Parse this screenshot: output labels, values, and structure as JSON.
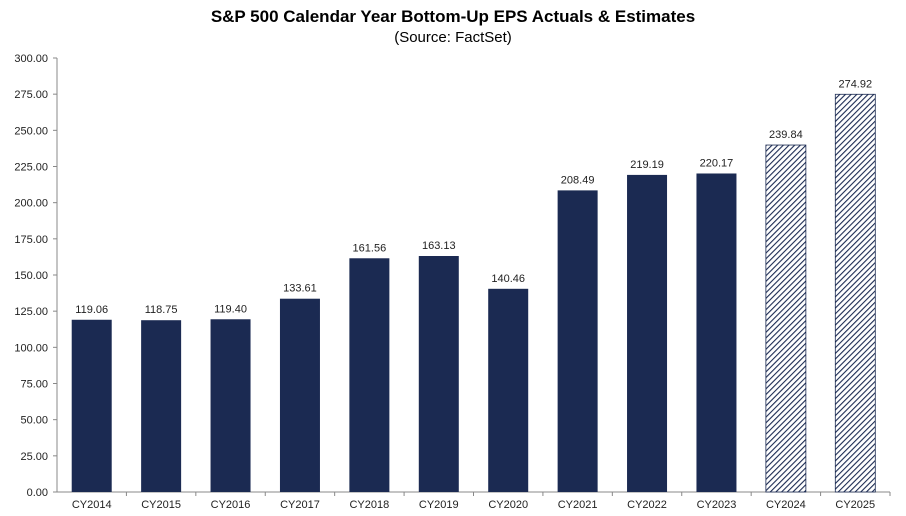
{
  "chart_data": {
    "type": "bar",
    "title": "S&P 500 Calendar Year Bottom-Up EPS Actuals & Estimates",
    "subtitle": "(Source: FactSet)",
    "xlabel": "",
    "ylabel": "",
    "categories": [
      "CY2014",
      "CY2015",
      "CY2016",
      "CY2017",
      "CY2018",
      "CY2019",
      "CY2020",
      "CY2021",
      "CY2022",
      "CY2023",
      "CY2024",
      "CY2025"
    ],
    "values": [
      119.06,
      118.75,
      119.4,
      133.61,
      161.56,
      163.13,
      140.46,
      208.49,
      219.19,
      220.17,
      239.84,
      274.92
    ],
    "value_labels": [
      "119.06",
      "118.75",
      "119.40",
      "133.61",
      "161.56",
      "163.13",
      "140.46",
      "208.49",
      "219.19",
      "220.17",
      "239.84",
      "274.92"
    ],
    "bar_style": [
      "solid",
      "solid",
      "solid",
      "solid",
      "solid",
      "solid",
      "solid",
      "solid",
      "solid",
      "solid",
      "hatched",
      "hatched"
    ],
    "ylim": [
      0,
      300
    ],
    "yticks": [
      "0.00",
      "25.00",
      "50.00",
      "75.00",
      "100.00",
      "125.00",
      "150.00",
      "175.00",
      "200.00",
      "225.00",
      "250.00",
      "275.00",
      "300.00"
    ],
    "grid": false,
    "legend": "none",
    "colors": {
      "bar": "#1b2a52",
      "axis": "#888888"
    }
  }
}
